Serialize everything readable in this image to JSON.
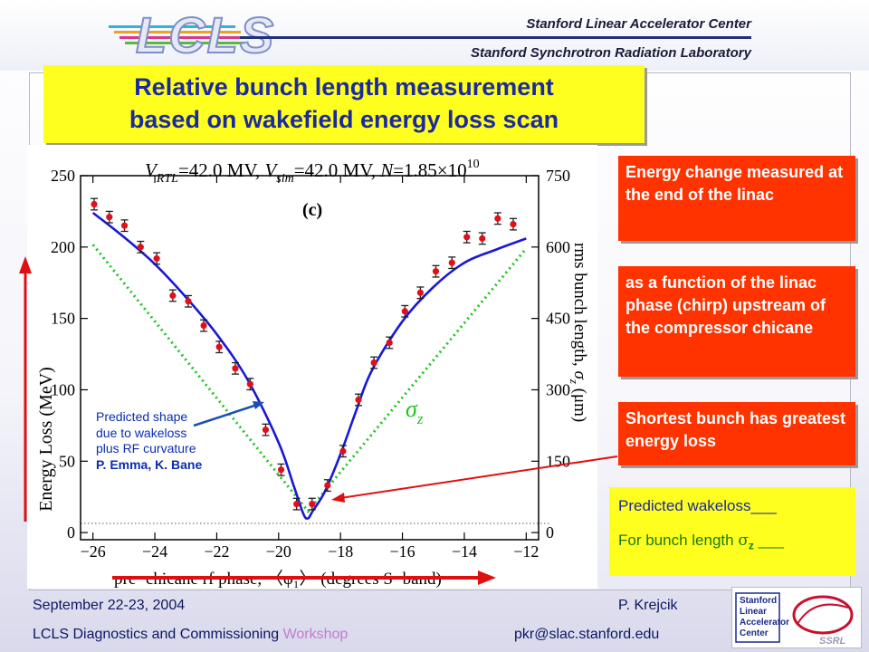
{
  "header": {
    "logo_text": "LCLS",
    "org_line1": "Stanford Linear Accelerator Center",
    "org_line2": "Stanford Synchrotron Radiation Laboratory"
  },
  "title": {
    "line1": "Relative bunch length measurement",
    "line2": "based on wakefield energy loss scan"
  },
  "callouts": {
    "energy_change": "Energy change measured at the end of the linac",
    "function_of": "as a function of the linac phase (chirp) upstream of the compressor chicane",
    "shortest": "Shortest bunch has greatest energy loss"
  },
  "notes": {
    "line1": "Predicted wakeloss___",
    "line2_prefix": "For bunch length ",
    "line2_symbol": "σ",
    "line2_sub": "z",
    "line2_suffix": " ___"
  },
  "prediction_note": {
    "line1": "Predicted shape",
    "line2": "due to wakeloss",
    "line3": "plus RF curvature",
    "authors": "P. Emma, K. Bane"
  },
  "footer": {
    "date": "September 22-23, 2004",
    "author": "P. Krejcik",
    "workshop_prefix": "LCLS Diagnostics and Commissioning ",
    "workshop_highlight": "Workshop",
    "email": "pkr@slac.stanford.edu"
  },
  "ssrl_logo": {
    "line1": "Stanford",
    "line2": "Linear",
    "line3": "Accelerator",
    "line4": "Center",
    "tag": "SSRL"
  },
  "chart_data": {
    "type": "scatter",
    "header_parts": {
      "v_rtl": "V",
      "v_rtl_sub": "RTL",
      "v_rtl_val": "=42.0 MV, ",
      "v_sim": "V",
      "v_sim_sub": "sim",
      "v_sim_val": "=42.0 MV, ",
      "n_label": "N",
      "n_val": "=1.85×10",
      "n_exp": "10"
    },
    "panel_label": "(c)",
    "xlabel": "pre−chicane rf phase, 〈φ₁〉 (degrees S−band)",
    "ylabel": "Energy Loss (MeV)",
    "y2label": "rms bunch length, σ_z (μm)",
    "y2label_parts": {
      "main": "rms bunch length, ",
      "sym": "σ",
      "sub": "z",
      "unit": " (μm)"
    },
    "sigma_label": "σ",
    "sigma_sub": "z",
    "xlim": [
      -26.4,
      -11.6
    ],
    "ylim": [
      -5,
      250
    ],
    "y2lim": [
      -15,
      750
    ],
    "x_ticks": [
      -26,
      -24,
      -22,
      -20,
      -18,
      -16,
      -14,
      -12
    ],
    "x_tick_labels": [
      "−26",
      "−24",
      "−22",
      "−20",
      "−18",
      "−16",
      "−14",
      "−12"
    ],
    "y_ticks": [
      0,
      50,
      100,
      150,
      200,
      250
    ],
    "y2_ticks": [
      0,
      150,
      300,
      450,
      600,
      750
    ],
    "measured": {
      "color": "#e0101a",
      "x": [
        -25.96,
        -25.47,
        -24.98,
        -24.46,
        -23.94,
        -23.42,
        -22.92,
        -22.42,
        -21.92,
        -21.4,
        -20.92,
        -20.42,
        -19.92,
        -19.42,
        -18.92,
        -18.42,
        -17.92,
        -17.42,
        -16.92,
        -16.42,
        -15.92,
        -15.42,
        -14.92,
        -14.4,
        -13.92,
        -13.42,
        -12.92,
        -12.42
      ],
      "y": [
        230,
        221,
        215,
        200,
        192,
        166,
        162,
        145,
        130,
        115,
        104,
        72,
        44,
        20,
        20,
        33,
        57,
        93,
        119,
        133,
        155,
        168,
        183,
        189,
        207,
        206,
        220,
        216
      ],
      "err": [
        4,
        4,
        4,
        4,
        4,
        4,
        4,
        4,
        4,
        4,
        4,
        4,
        4,
        4,
        4,
        4,
        4,
        4,
        4,
        4,
        4,
        4,
        4,
        4,
        4,
        4,
        4,
        4
      ]
    },
    "predicted": {
      "color": "#1818d8",
      "x": [
        -26,
        -25,
        -24,
        -23,
        -22,
        -21,
        -20,
        -19.5,
        -19.2,
        -19.05,
        -18.9,
        -18.5,
        -18,
        -17.5,
        -17,
        -16,
        -15,
        -14,
        -13,
        -12
      ],
      "y": [
        224,
        207,
        188,
        165,
        139,
        107,
        63,
        32,
        13,
        10,
        15,
        29,
        55,
        85,
        113,
        148,
        172,
        189,
        198,
        206
      ]
    },
    "sigma_z": {
      "color": "#1ec41e",
      "x": [
        -26,
        -19.05,
        -12
      ],
      "y": [
        605,
        45,
        597
      ]
    }
  }
}
